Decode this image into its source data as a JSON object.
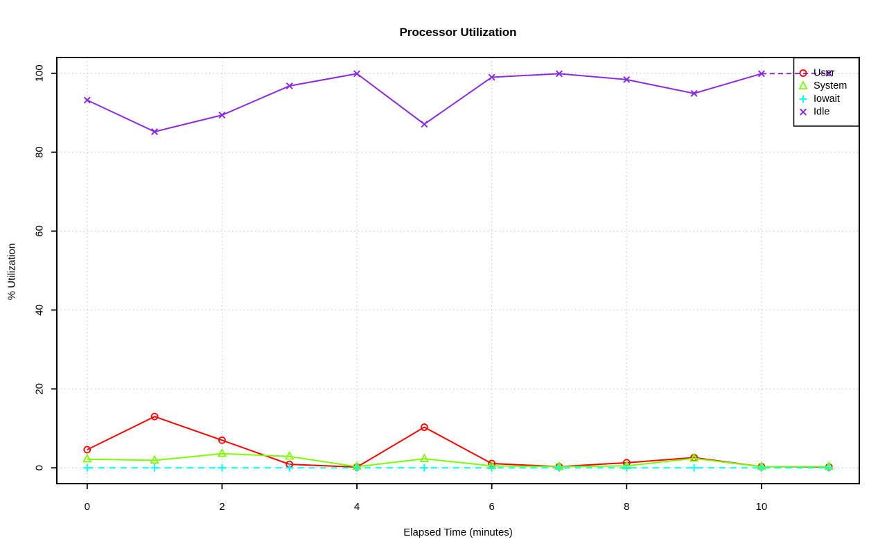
{
  "chart_data": {
    "type": "line",
    "title": "Processor Utilization",
    "xlabel": "Elapsed Time (minutes)",
    "ylabel": "% Utilization",
    "x": [
      0,
      1,
      2,
      3,
      4,
      5,
      6,
      7,
      8,
      9,
      10,
      11
    ],
    "xticks": [
      0,
      2,
      4,
      6,
      8,
      10
    ],
    "yticks": [
      0,
      20,
      40,
      60,
      80,
      100
    ],
    "xlim": [
      -0.45,
      11.45
    ],
    "ylim": [
      -4,
      104
    ],
    "grid": "dotted",
    "legend": {
      "position": "top-right",
      "entries": [
        "User",
        "System",
        "Iowait",
        "Idle"
      ]
    },
    "series": [
      {
        "name": "User",
        "color": "#ff0000",
        "marker": "circle",
        "line": "solid",
        "values": [
          4.6,
          13.0,
          7.0,
          0.9,
          0.2,
          10.3,
          1.1,
          0.3,
          1.3,
          2.6,
          0.3,
          0.2
        ]
      },
      {
        "name": "System",
        "color": "#7cfc00",
        "marker": "triangle",
        "line": "solid",
        "values": [
          2.2,
          1.9,
          3.6,
          2.9,
          0.3,
          2.3,
          0.5,
          0.3,
          0.5,
          2.4,
          0.3,
          0.3
        ]
      },
      {
        "name": "Iowait",
        "color": "#00ffff",
        "marker": "plus",
        "line": "dashed",
        "values": [
          0,
          0,
          0,
          0,
          0,
          0,
          0,
          0,
          0,
          0,
          0,
          0
        ]
      },
      {
        "name": "Idle",
        "color": "#8a2be2",
        "marker": "x",
        "line": "solid",
        "dashed_tail": true,
        "values": [
          93.2,
          85.2,
          89.4,
          96.8,
          99.9,
          87.1,
          99.0,
          99.9,
          98.4,
          94.9,
          99.9,
          100
        ]
      }
    ],
    "colors": {
      "grid": "#c6c6c6",
      "axis": "#000000",
      "background": "#ffffff"
    }
  }
}
